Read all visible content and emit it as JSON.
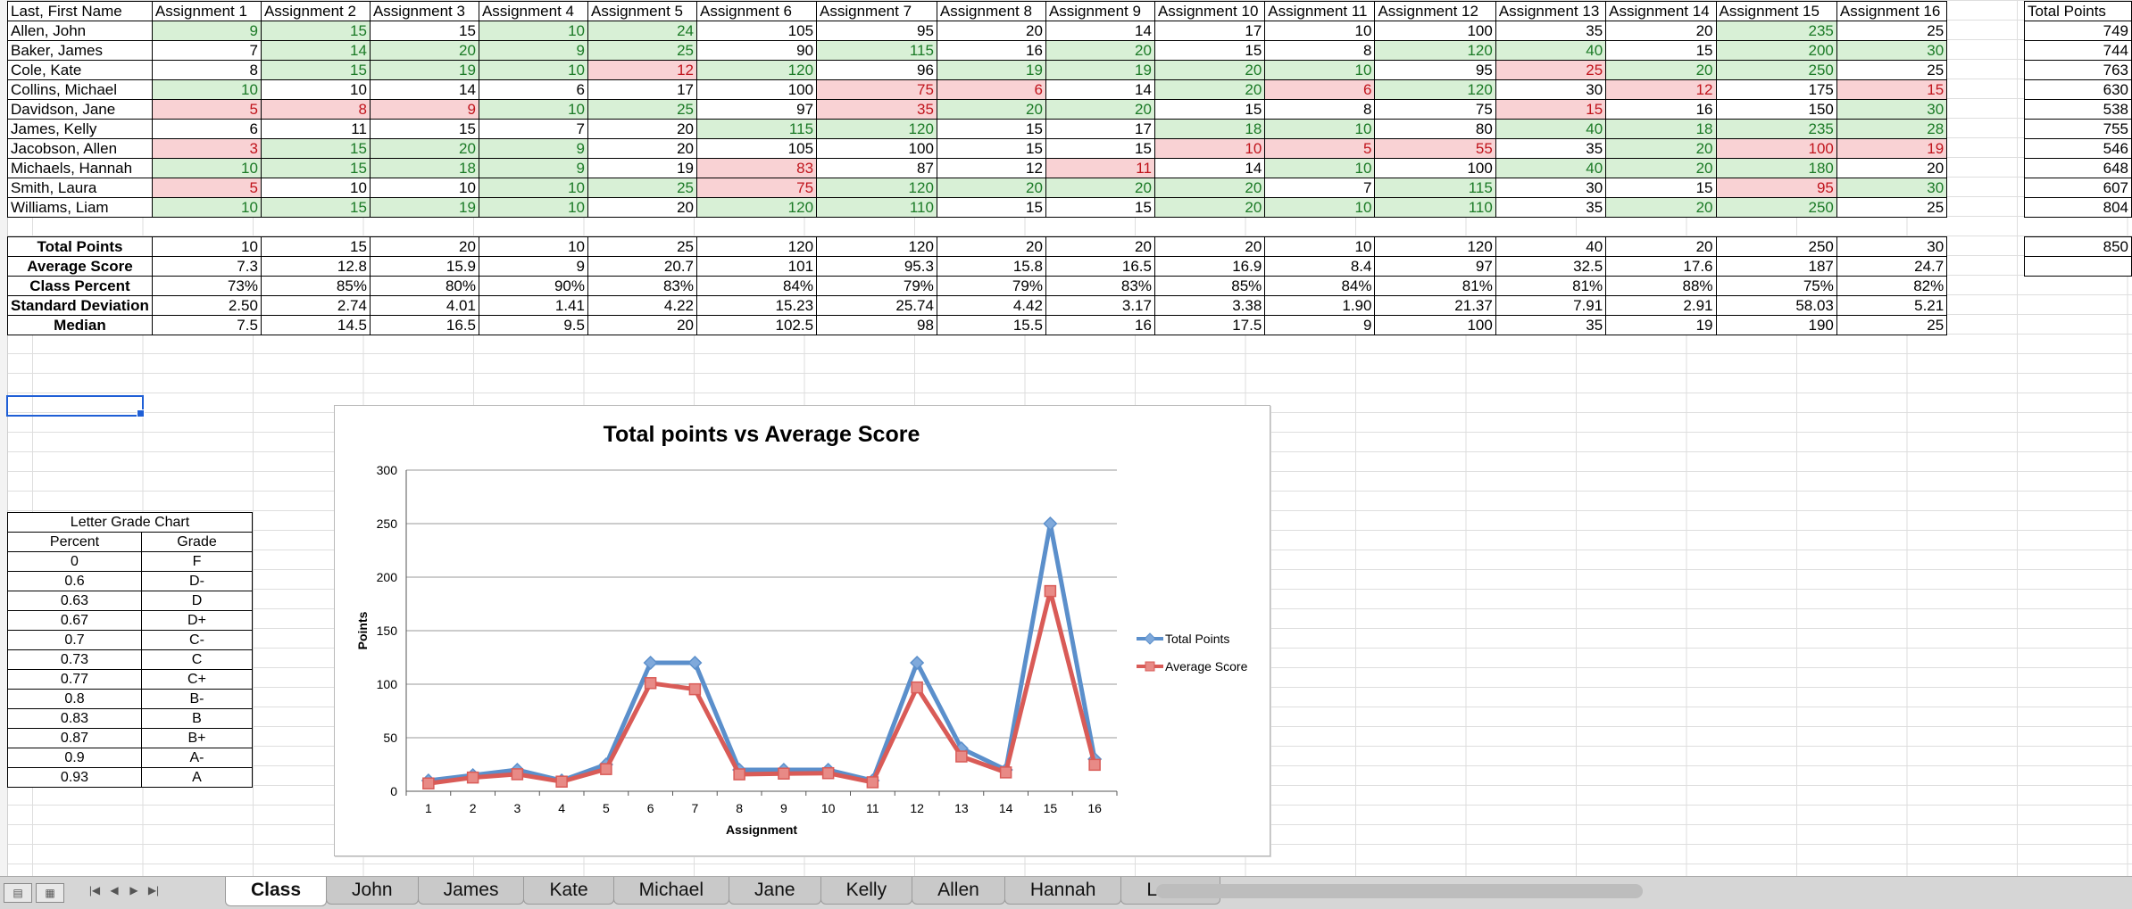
{
  "sheet": {
    "header": [
      "Last, First Name",
      "Assignment 1",
      "Assignment 2",
      "Assignment 3",
      "Assignment 4",
      "Assignment 5",
      "Assignment 6",
      "Assignment 7",
      "Assignment 8",
      "Assignment 9",
      "Assignment 10",
      "Assignment 11",
      "Assignment 12",
      "Assignment 13",
      "Assignment 14",
      "Assignment 15",
      "Assignment 16"
    ],
    "total_header": "Total Points",
    "students": [
      {
        "name": "Allen, John",
        "scores": [
          "9",
          "15",
          "15",
          "10",
          "24",
          "105",
          "95",
          "20",
          "14",
          "17",
          "10",
          "100",
          "35",
          "20",
          "235",
          "25"
        ],
        "flags": [
          "g",
          "g",
          "",
          "g",
          "g",
          "",
          "",
          "",
          "",
          "",
          "",
          "",
          "",
          "",
          "g",
          ""
        ],
        "total": "749"
      },
      {
        "name": "Baker, James",
        "scores": [
          "7",
          "14",
          "20",
          "9",
          "25",
          "90",
          "115",
          "16",
          "20",
          "15",
          "8",
          "120",
          "40",
          "15",
          "200",
          "30"
        ],
        "flags": [
          "",
          "g",
          "g",
          "g",
          "g",
          "",
          "g",
          "",
          "g",
          "",
          "",
          "g",
          "g",
          "",
          "g",
          "g"
        ],
        "total": "744"
      },
      {
        "name": "Cole, Kate",
        "scores": [
          "8",
          "15",
          "19",
          "10",
          "12",
          "120",
          "96",
          "19",
          "19",
          "20",
          "10",
          "95",
          "25",
          "20",
          "250",
          "25"
        ],
        "flags": [
          "",
          "g",
          "g",
          "g",
          "r",
          "g",
          "",
          "g",
          "g",
          "g",
          "g",
          "",
          "r",
          "g",
          "g",
          ""
        ],
        "total": "763"
      },
      {
        "name": "Collins, Michael",
        "scores": [
          "10",
          "10",
          "14",
          "6",
          "17",
          "100",
          "75",
          "6",
          "14",
          "20",
          "6",
          "120",
          "30",
          "12",
          "175",
          "15"
        ],
        "flags": [
          "g",
          "",
          "",
          "",
          "",
          "",
          "r",
          "r",
          "",
          "g",
          "r",
          "g",
          "",
          "r",
          "",
          "r"
        ],
        "total": "630"
      },
      {
        "name": "Davidson, Jane",
        "scores": [
          "5",
          "8",
          "9",
          "10",
          "25",
          "97",
          "35",
          "20",
          "20",
          "15",
          "8",
          "75",
          "15",
          "16",
          "150",
          "30"
        ],
        "flags": [
          "r",
          "r",
          "r",
          "g",
          "g",
          "",
          "r",
          "g",
          "g",
          "",
          "",
          "",
          "r",
          "",
          "",
          "g"
        ],
        "total": "538"
      },
      {
        "name": "James, Kelly",
        "scores": [
          "6",
          "11",
          "15",
          "7",
          "20",
          "115",
          "120",
          "15",
          "17",
          "18",
          "10",
          "80",
          "40",
          "18",
          "235",
          "28"
        ],
        "flags": [
          "",
          "",
          "",
          "",
          "",
          "g",
          "g",
          "",
          "",
          "g",
          "g",
          "",
          "g",
          "g",
          "g",
          "g"
        ],
        "total": "755"
      },
      {
        "name": "Jacobson, Allen",
        "scores": [
          "3",
          "15",
          "20",
          "9",
          "20",
          "105",
          "100",
          "15",
          "15",
          "10",
          "5",
          "55",
          "35",
          "20",
          "100",
          "19"
        ],
        "flags": [
          "r",
          "g",
          "g",
          "g",
          "",
          "",
          "",
          "",
          "",
          "r",
          "r",
          "r",
          "",
          "g",
          "r",
          "r"
        ],
        "total": "546"
      },
      {
        "name": "Michaels, Hannah",
        "scores": [
          "10",
          "15",
          "18",
          "9",
          "19",
          "83",
          "87",
          "12",
          "11",
          "14",
          "10",
          "100",
          "40",
          "20",
          "180",
          "20"
        ],
        "flags": [
          "g",
          "g",
          "g",
          "g",
          "",
          "r",
          "",
          "",
          "r",
          "",
          "g",
          "",
          "g",
          "g",
          "g",
          ""
        ],
        "total": "648"
      },
      {
        "name": "Smith, Laura",
        "scores": [
          "5",
          "10",
          "10",
          "10",
          "25",
          "75",
          "120",
          "20",
          "20",
          "20",
          "7",
          "115",
          "30",
          "15",
          "95",
          "30"
        ],
        "flags": [
          "r",
          "",
          "",
          "g",
          "g",
          "r",
          "g",
          "g",
          "g",
          "g",
          "",
          "g",
          "",
          "",
          "r",
          "g"
        ],
        "total": "607"
      },
      {
        "name": "Williams, Liam",
        "scores": [
          "10",
          "15",
          "19",
          "10",
          "20",
          "120",
          "110",
          "15",
          "15",
          "20",
          "10",
          "110",
          "35",
          "20",
          "250",
          "25"
        ],
        "flags": [
          "g",
          "g",
          "g",
          "g",
          "",
          "g",
          "g",
          "",
          "",
          "g",
          "g",
          "g",
          "",
          "g",
          "g",
          ""
        ],
        "total": "804"
      }
    ],
    "stats": [
      {
        "label": "Total Points",
        "values": [
          "10",
          "15",
          "20",
          "10",
          "25",
          "120",
          "120",
          "20",
          "20",
          "20",
          "10",
          "120",
          "40",
          "20",
          "250",
          "30"
        ],
        "total": "850"
      },
      {
        "label": "Average Score",
        "values": [
          "7.3",
          "12.8",
          "15.9",
          "9",
          "20.7",
          "101",
          "95.3",
          "15.8",
          "16.5",
          "16.9",
          "8.4",
          "97",
          "32.5",
          "17.6",
          "187",
          "24.7"
        ],
        "total": ""
      },
      {
        "label": "Class Percent",
        "values": [
          "73%",
          "85%",
          "80%",
          "90%",
          "83%",
          "84%",
          "79%",
          "79%",
          "83%",
          "85%",
          "84%",
          "81%",
          "81%",
          "88%",
          "75%",
          "82%"
        ]
      },
      {
        "label": "Standard Deviation",
        "values": [
          "2.50",
          "2.74",
          "4.01",
          "1.41",
          "4.22",
          "15.23",
          "25.74",
          "4.42",
          "3.17",
          "3.38",
          "1.90",
          "21.37",
          "7.91",
          "2.91",
          "58.03",
          "5.21"
        ]
      },
      {
        "label": "Median",
        "values": [
          "7.5",
          "14.5",
          "16.5",
          "9.5",
          "20",
          "102.5",
          "98",
          "15.5",
          "16",
          "17.5",
          "9",
          "100",
          "35",
          "19",
          "190",
          "25"
        ]
      }
    ]
  },
  "grade_chart": {
    "title": "Letter Grade Chart",
    "headers": [
      "Percent",
      "Grade"
    ],
    "rows": [
      [
        "0",
        "F"
      ],
      [
        "0.6",
        "D-"
      ],
      [
        "0.63",
        "D"
      ],
      [
        "0.67",
        "D+"
      ],
      [
        "0.7",
        "C-"
      ],
      [
        "0.73",
        "C"
      ],
      [
        "0.77",
        "C+"
      ],
      [
        "0.8",
        "B-"
      ],
      [
        "0.83",
        "B"
      ],
      [
        "0.87",
        "B+"
      ],
      [
        "0.9",
        "A-"
      ],
      [
        "0.93",
        "A"
      ]
    ]
  },
  "chart_data": {
    "type": "line",
    "title": "Total points vs Average Score",
    "xlabel": "Assignment",
    "ylabel": "Points",
    "x": [
      1,
      2,
      3,
      4,
      5,
      6,
      7,
      8,
      9,
      10,
      11,
      12,
      13,
      14,
      15,
      16
    ],
    "ylim": [
      0,
      300
    ],
    "yticks": [
      0,
      50,
      100,
      150,
      200,
      250,
      300
    ],
    "grid": true,
    "legend": "right",
    "series": [
      {
        "name": "Total Points",
        "color": "#5b8fcb",
        "values": [
          10,
          15,
          20,
          10,
          25,
          120,
          120,
          20,
          20,
          20,
          10,
          120,
          40,
          20,
          250,
          30
        ]
      },
      {
        "name": "Average Score",
        "color": "#d95b57",
        "values": [
          7.3,
          12.8,
          15.9,
          9,
          20.7,
          101,
          95.3,
          15.8,
          16.5,
          16.9,
          8.4,
          97,
          32.5,
          17.6,
          187,
          24.7
        ]
      }
    ]
  },
  "tabs": [
    "Class",
    "John",
    "James",
    "Kate",
    "Michael",
    "Jane",
    "Kelly",
    "Allen",
    "Hannah",
    "Laura"
  ],
  "active_tab": "Class",
  "colors": {
    "good_bg": "#d8f0d6",
    "good_text": "#1b7a26",
    "bad_bg": "#f9d2d4",
    "bad_text": "#c0141c",
    "selection": "#1f5fd6"
  }
}
